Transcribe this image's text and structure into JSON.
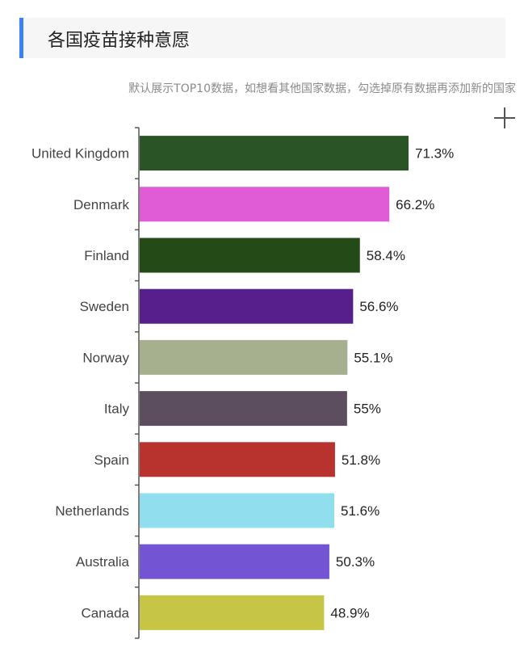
{
  "header": {
    "title": "各国疫苗接种意愿",
    "subtitle": "默认展示TOP10数据，如想看其他国家数据，勾选掉原有数据再添加新的国家",
    "accent_color": "#3b82f6"
  },
  "toolbar": {
    "add_icon": "plus-icon"
  },
  "chart_data": {
    "type": "bar",
    "orientation": "horizontal",
    "categories": [
      "United Kingdom",
      "Denmark",
      "Finland",
      "Sweden",
      "Norway",
      "Italy",
      "Spain",
      "Netherlands",
      "Australia",
      "Canada"
    ],
    "values": [
      71.3,
      66.2,
      58.4,
      56.6,
      55.1,
      55,
      51.8,
      51.6,
      50.3,
      48.9
    ],
    "value_labels": [
      "71.3%",
      "66.2%",
      "58.4%",
      "56.6%",
      "55.1%",
      "55%",
      "51.8%",
      "51.6%",
      "50.3%",
      "48.9%"
    ],
    "colors": [
      "#2a5425",
      "#e05bd6",
      "#244b17",
      "#561f8c",
      "#a6b08e",
      "#5d4e5f",
      "#b8322e",
      "#91dfee",
      "#7355d4",
      "#c7c545"
    ],
    "xlim": [
      0,
      71.3
    ],
    "grid": false
  }
}
